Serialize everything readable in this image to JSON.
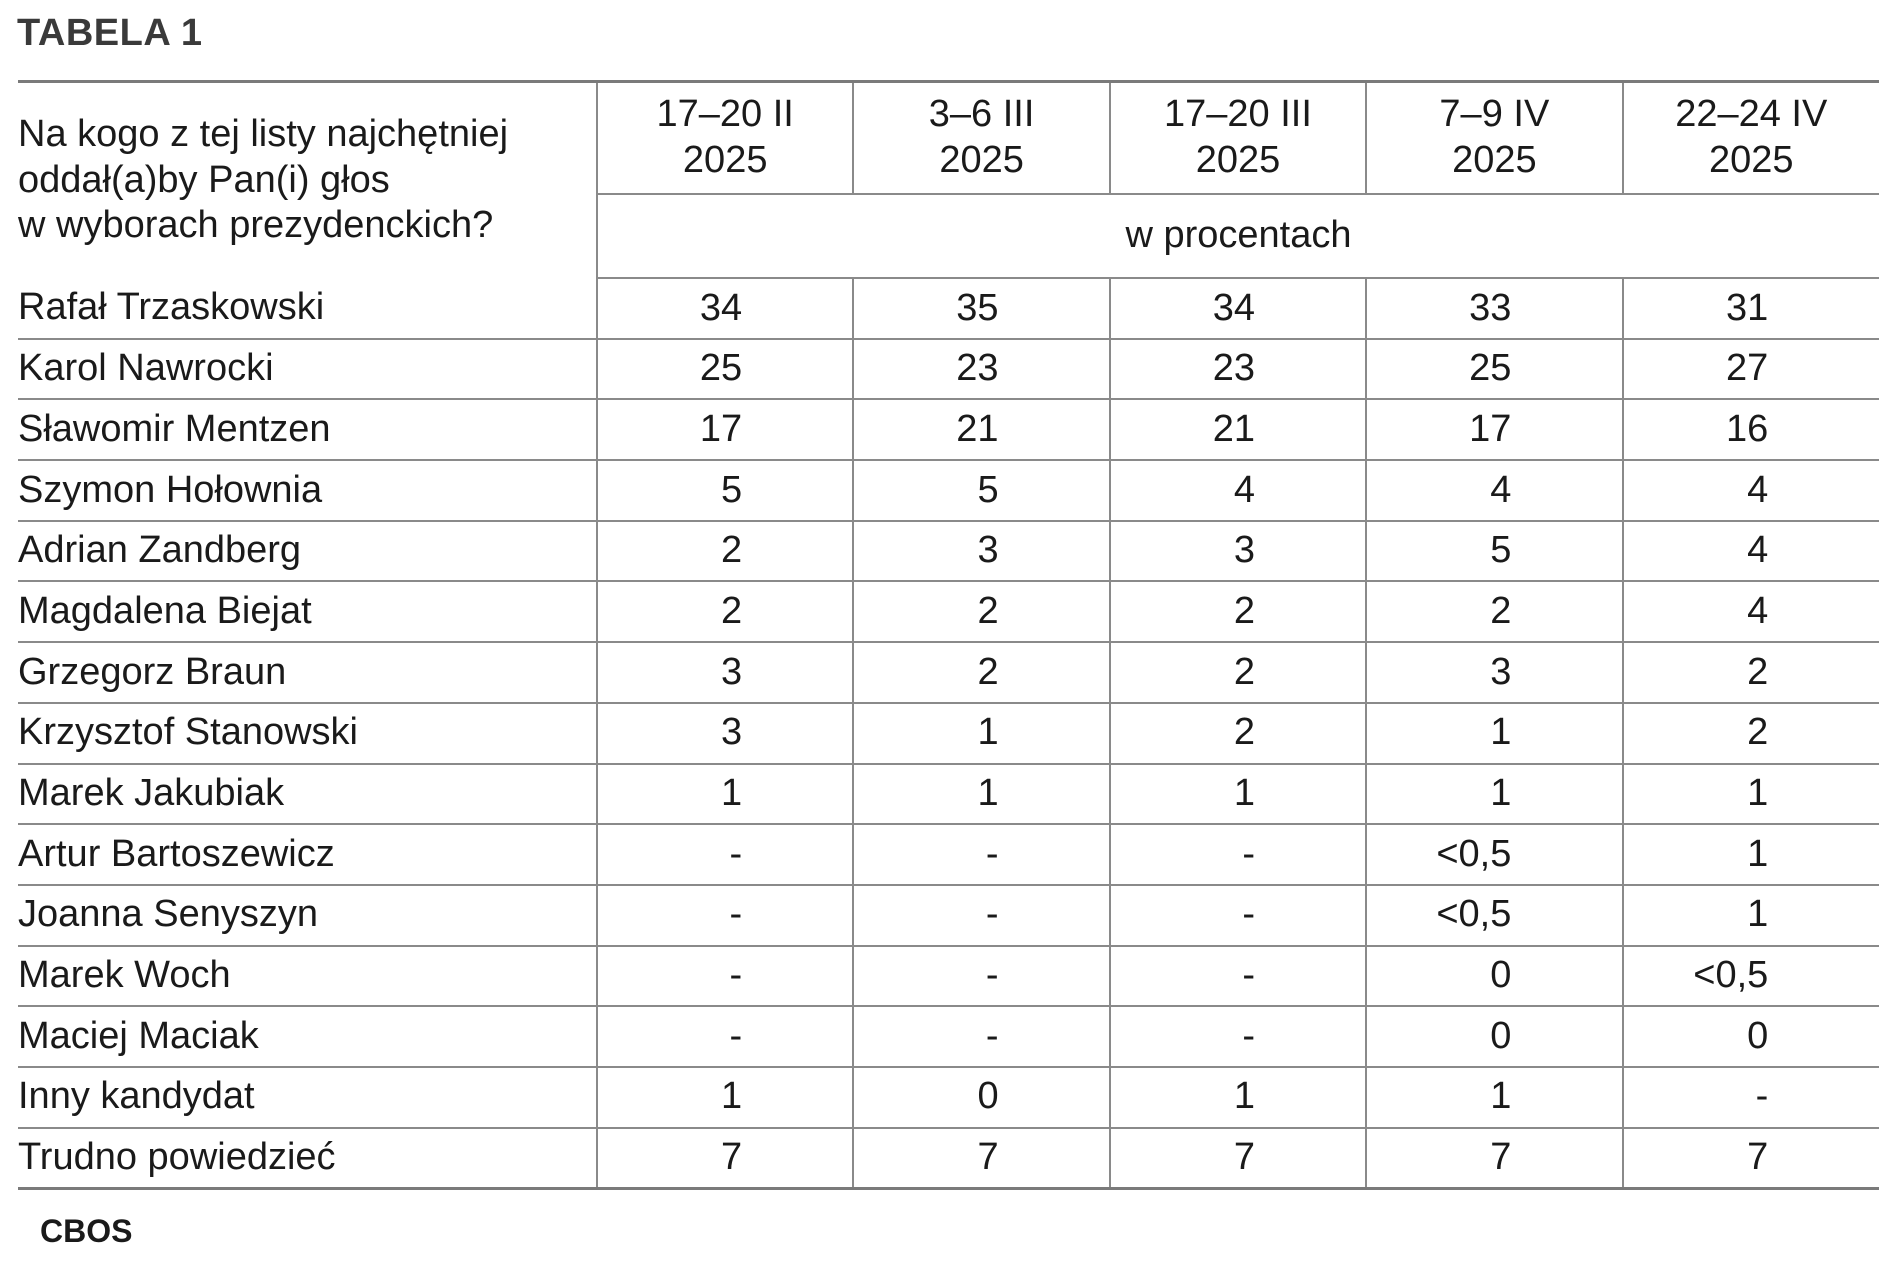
{
  "title": "TABELA 1",
  "question": "Na kogo z tej listy najchętniej oddał(a)by Pan(i) głos w wyborach prezydenckich?",
  "question_lines": [
    "Na kogo z tej listy najchętniej",
    "oddał(a)by Pan(i) głos",
    "w wyborach prezydenckich?"
  ],
  "periods": [
    {
      "dates": "17–20 II",
      "year": "2025"
    },
    {
      "dates": "3–6 III",
      "year": "2025"
    },
    {
      "dates": "17–20 III",
      "year": "2025"
    },
    {
      "dates": "7–9 IV",
      "year": "2025"
    },
    {
      "dates": "22–24 IV",
      "year": "2025"
    }
  ],
  "unit_label": "w procentach",
  "rows": [
    {
      "name": "Rafał Trzaskowski",
      "values": [
        "34",
        "35",
        "34",
        "33",
        "31"
      ]
    },
    {
      "name": "Karol Nawrocki",
      "values": [
        "25",
        "23",
        "23",
        "25",
        "27"
      ]
    },
    {
      "name": "Sławomir Mentzen",
      "values": [
        "17",
        "21",
        "21",
        "17",
        "16"
      ]
    },
    {
      "name": "Szymon Hołownia",
      "values": [
        "5",
        "5",
        "4",
        "4",
        "4"
      ]
    },
    {
      "name": "Adrian Zandberg",
      "values": [
        "2",
        "3",
        "3",
        "5",
        "4"
      ]
    },
    {
      "name": "Magdalena Biejat",
      "values": [
        "2",
        "2",
        "2",
        "2",
        "4"
      ]
    },
    {
      "name": "Grzegorz Braun",
      "values": [
        "3",
        "2",
        "2",
        "3",
        "2"
      ]
    },
    {
      "name": "Krzysztof Stanowski",
      "values": [
        "3",
        "1",
        "2",
        "1",
        "2"
      ]
    },
    {
      "name": "Marek Jakubiak",
      "values": [
        "1",
        "1",
        "1",
        "1",
        "1"
      ]
    },
    {
      "name": "Artur Bartoszewicz",
      "values": [
        "-",
        "-",
        "-",
        "<0,5",
        "1"
      ]
    },
    {
      "name": "Joanna Senyszyn",
      "values": [
        "-",
        "-",
        "-",
        "<0,5",
        "1"
      ]
    },
    {
      "name": "Marek Woch",
      "values": [
        "-",
        "-",
        "-",
        "0",
        "<0,5"
      ]
    },
    {
      "name": "Maciej Maciak",
      "values": [
        "-",
        "-",
        "-",
        "0",
        "0"
      ]
    },
    {
      "name": "Inny kandydat",
      "values": [
        "1",
        "0",
        "1",
        "1",
        "-"
      ]
    },
    {
      "name": "Trudno powiedzieć",
      "values": [
        "7",
        "7",
        "7",
        "7",
        "7"
      ]
    }
  ],
  "source": "CBOS"
}
